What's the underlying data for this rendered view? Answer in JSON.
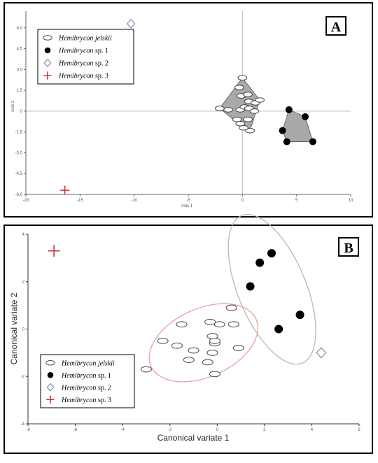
{
  "chart_data": [
    {
      "panel": "A",
      "type": "scatter",
      "xlabel": "Axis 1",
      "ylabel": "Axis 2",
      "xlim": [
        -20,
        10
      ],
      "ylim": [
        -6,
        7.2
      ],
      "x_ticks": [
        -20,
        -15,
        -10,
        -5,
        0,
        5,
        10
      ],
      "y_ticks": [
        -6.0,
        -4.5,
        -3.0,
        -1.5,
        0,
        1.5,
        3.0,
        4.5,
        6.0
      ],
      "y_tick_labels": [
        "-6.0",
        "-4.5",
        "-3.0",
        "-1.5",
        "0",
        "1.5",
        "3.0",
        "4.5",
        "6.0"
      ],
      "grid": false,
      "zero_lines": true,
      "legend_position": "top-left",
      "hulls": true,
      "series": [
        {
          "name": "Hemibrycon jelskii",
          "marker": "open-ellipse",
          "x": [
            0.0,
            -0.3,
            -0.1,
            0.5,
            0.6,
            1.2,
            1.6,
            -2.1,
            -1.3,
            -0.2,
            0.2,
            0.6,
            1.1,
            -0.5,
            -0.2,
            0.5,
            0.7,
            0.1
          ],
          "y": [
            2.4,
            1.7,
            1.1,
            1.2,
            0.7,
            0.6,
            0.8,
            0.2,
            0.1,
            0.1,
            0.3,
            0.2,
            0.0,
            -0.6,
            -0.9,
            -0.6,
            -1.4,
            -1.2
          ]
        },
        {
          "name": "Hemibrycon sp. 1",
          "marker": "filled-circle",
          "x": [
            4.3,
            5.8,
            3.7,
            4.1,
            6.5
          ],
          "y": [
            0.1,
            -0.4,
            -1.4,
            -2.2,
            -2.2
          ]
        },
        {
          "name": "Hemibrycon sp. 2",
          "marker": "open-diamond",
          "x": [
            -10.3
          ],
          "y": [
            6.3
          ]
        },
        {
          "name": "Hemibrycon sp. 3",
          "marker": "plus",
          "x": [
            -16.4
          ],
          "y": [
            -5.7
          ]
        }
      ]
    },
    {
      "panel": "B",
      "type": "scatter",
      "xlabel": "Canonical variate 1",
      "ylabel": "Canonical variate 2",
      "xlim": [
        -8,
        6
      ],
      "ylim": [
        -4,
        4
      ],
      "x_ticks": [
        -8,
        -6,
        -4,
        -2,
        0,
        2,
        4,
        6
      ],
      "y_ticks": [
        -4,
        -2,
        0,
        2,
        4
      ],
      "grid": false,
      "legend_position": "bottom-left",
      "confidence_ellipses": true,
      "series": [
        {
          "name": "Hemibrycon jelskii",
          "marker": "open-ellipse",
          "x": [
            0.6,
            -1.5,
            -0.3,
            0.1,
            0.7,
            -2.3,
            -1.7,
            -0.1,
            -1.0,
            -0.1,
            -1.2,
            0.9,
            -3.0,
            -0.1,
            -0.2,
            -0.4,
            -0.2
          ],
          "y": [
            0.9,
            0.2,
            0.3,
            0.2,
            0.2,
            -0.5,
            -0.7,
            -0.6,
            -0.9,
            -0.5,
            -1.3,
            -0.8,
            -1.7,
            -1.9,
            -1.0,
            -1.4,
            -0.3
          ]
        },
        {
          "name": "Hemibrycon sp. 1",
          "marker": "filled-circle",
          "x": [
            2.3,
            1.8,
            1.4,
            3.5,
            2.6
          ],
          "y": [
            3.2,
            2.8,
            1.8,
            0.6,
            0.0
          ]
        },
        {
          "name": "Hemibrycon sp. 2",
          "marker": "open-diamond",
          "x": [
            4.4
          ],
          "y": [
            -1.0
          ]
        },
        {
          "name": "Hemibrycon sp. 3",
          "marker": "plus",
          "x": [
            -6.9
          ],
          "y": [
            3.3
          ]
        }
      ]
    }
  ],
  "panels": [
    {
      "label": "A",
      "legend": [
        {
          "genus": "Hemibrycon",
          "epithet": "jelskii",
          "marker": "open-ellipse"
        },
        {
          "genus": "Hemibrycon",
          "epithet": "sp. 1",
          "marker": "filled-circle"
        },
        {
          "genus": "Hemibrycon",
          "epithet": "sp. 2",
          "marker": "open-diamond"
        },
        {
          "genus": "Hemibrycon",
          "epithet": "sp. 3",
          "marker": "plus"
        }
      ]
    },
    {
      "label": "B",
      "legend": [
        {
          "genus": "Hemibrycon",
          "epithet": "jelskii",
          "marker": "open-ellipse"
        },
        {
          "genus": "Hemibrycon",
          "epithet": "sp. 1",
          "marker": "filled-circle"
        },
        {
          "genus": "Hemibrycon",
          "epithet": "sp. 2",
          "marker": "open-diamond"
        },
        {
          "genus": "Hemibrycon",
          "epithet": "sp. 3",
          "marker": "plus"
        }
      ]
    }
  ],
  "colors": {
    "panel_border": "#000000",
    "axis": "#666666",
    "zero_line": "#b8b8b8",
    "hull_fill": "#a9a9a9",
    "hull_stroke": "#555555",
    "open_ellipse": "#444444",
    "filled_circle": "#000000",
    "diamond": "#8a84b8",
    "plus": "#c8343c",
    "ellipse_jelskii": "#e8a0a0",
    "ellipse_sp1": "#b8bca0"
  }
}
